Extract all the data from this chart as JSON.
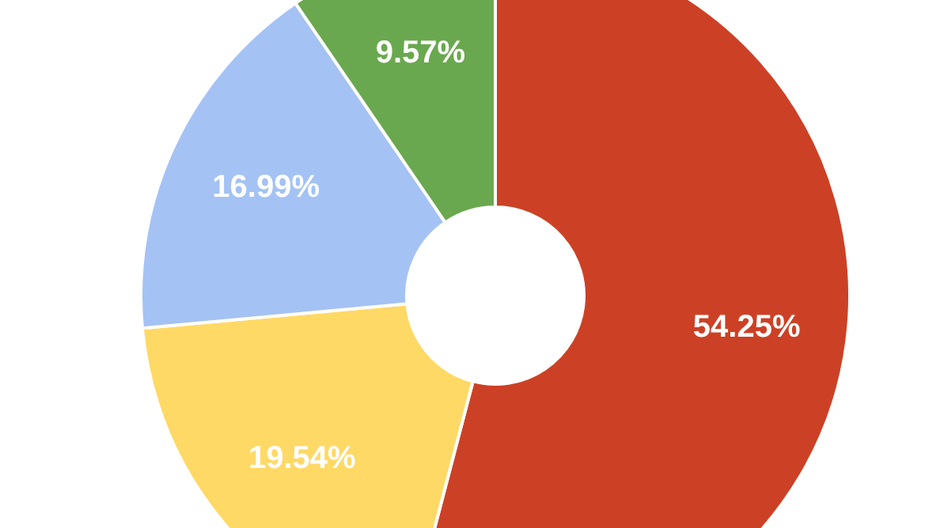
{
  "chart_data": {
    "type": "donut",
    "categories": [
      null,
      null,
      null,
      null
    ],
    "values": [
      54.25,
      19.54,
      16.99,
      9.57
    ],
    "value_labels": [
      "54.25%",
      "19.54%",
      "16.99%",
      "9.57%"
    ],
    "colors": [
      "#cc4125",
      "#ffd966",
      "#a4c2f4",
      "#6aa84f"
    ],
    "legend": false
  }
}
